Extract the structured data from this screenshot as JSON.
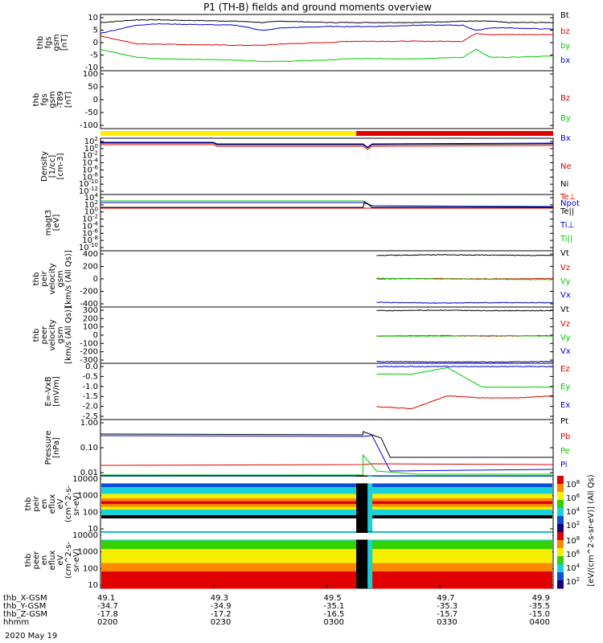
{
  "title": "P1 (TH-B) fields and ground moments overview",
  "date": "2020 May 19",
  "colors": {
    "black": "#000000",
    "red": "#e00000",
    "green": "#00cc00",
    "blue": "#0000dd",
    "yellow": "#ffee00"
  },
  "bottom_axis": {
    "row_labels": [
      "thb_X-GSM",
      "thb_Y-GSM",
      "thb_Z-GSM",
      "hhmm"
    ],
    "columns": [
      [
        "49.1",
        "-34.7",
        "-17.8",
        "0200"
      ],
      [
        "49.3",
        "-34.9",
        "-17.2",
        "0230"
      ],
      [
        "49.5",
        "-35.1",
        "-16.5",
        "0300"
      ],
      [
        "49.7",
        "-35.3",
        "-15.7",
        "0330"
      ],
      [
        "49.9",
        "-35.5",
        "-15.0",
        "0400"
      ]
    ]
  },
  "colorbar": {
    "label": "[eV/(cm^2-s-sr-eV)] (All Qs)",
    "ticks_top": [
      "10^8",
      "10^6",
      "10^4",
      "10^2"
    ],
    "ticks_bottom": [
      "10^8",
      "10^6",
      "10^4",
      "10^2"
    ]
  },
  "chart_data": [
    {
      "type": "line",
      "id": "fgs",
      "ylabel": [
        "thb",
        "fgs",
        "gsm",
        "[nT]"
      ],
      "yticks": [
        "10",
        "5",
        "0",
        "-5",
        "-10"
      ],
      "ylim": [
        -10,
        11
      ],
      "x": [
        0,
        0.08,
        0.12,
        0.3,
        0.36,
        0.4,
        0.5,
        0.55,
        0.6,
        0.7,
        0.8,
        0.83,
        0.86,
        0.9,
        1.0
      ],
      "series": [
        {
          "name": "Bt",
          "color": "black",
          "values": [
            8,
            9,
            9,
            8.5,
            8,
            8.5,
            8,
            8,
            8,
            8,
            8.5,
            8.5,
            8.5,
            8,
            8
          ]
        },
        {
          "name": "bz",
          "color": "red",
          "values": [
            3,
            0,
            0,
            -0.5,
            -0.5,
            0,
            0.5,
            1,
            1,
            1,
            1,
            4,
            3.5,
            3.5,
            3.5
          ]
        },
        {
          "name": "by",
          "color": "green",
          "values": [
            -2,
            -5,
            -5.5,
            -6,
            -6.5,
            -6.5,
            -6,
            -5.5,
            -5.5,
            -5.5,
            -5,
            -2,
            -5,
            -5,
            -4.5
          ]
        },
        {
          "name": "bx",
          "color": "blue",
          "values": [
            4,
            7,
            7.5,
            7,
            5,
            6,
            6.5,
            6.5,
            6.5,
            7,
            7,
            5,
            6,
            6,
            5.5
          ]
        }
      ]
    },
    {
      "type": "line",
      "id": "fgs-minus",
      "ylabel": [
        "thb",
        "fgs",
        "gsm",
        "-T89",
        "[nT]"
      ],
      "yticks": [
        "100",
        "50",
        "0",
        "-50",
        "-100"
      ],
      "ylim": [
        -125,
        100
      ],
      "series": [
        {
          "name": "Bz",
          "color": "red",
          "values": []
        },
        {
          "name": "By",
          "color": "green",
          "values": []
        },
        {
          "name": "Bx",
          "color": "blue",
          "values": []
        }
      ]
    },
    {
      "type": "bar",
      "id": "mode-bar",
      "segments": [
        {
          "color": "yellow",
          "start": 0,
          "end": 0.565
        },
        {
          "color": "red",
          "start": 0.565,
          "end": 1
        }
      ]
    },
    {
      "type": "line",
      "id": "density",
      "scale": "log",
      "ylabel": [
        "Density",
        "[1/cc]",
        "[cm-3]"
      ],
      "yticks": [
        "10^2",
        "10^0",
        "10^-2",
        "10^-4",
        "10^-6",
        "10^-8",
        "10^-10",
        "10^-12"
      ],
      "series": [
        {
          "name": "Ne",
          "color": "red",
          "values": []
        },
        {
          "name": "Ni",
          "color": "black",
          "values": []
        },
        {
          "name": "Npot",
          "color": "blue",
          "values": []
        }
      ]
    },
    {
      "type": "line",
      "id": "temperature",
      "scale": "log",
      "ylabel": [
        "magt3",
        "[eV]"
      ],
      "yticks": [
        "10^4",
        "10^2",
        "10^0",
        "10^-2",
        "10^-4",
        "10^-6",
        "10^-8",
        "10^-10"
      ],
      "series": [
        {
          "name": "Te⊥",
          "color": "red",
          "values": []
        },
        {
          "name": "Te||",
          "color": "black",
          "values": []
        },
        {
          "name": "Ti⊥",
          "color": "blue",
          "values": []
        },
        {
          "name": "Ti||",
          "color": "green",
          "values": []
        }
      ]
    },
    {
      "type": "line",
      "id": "peir-velocity",
      "ylabel": [
        "thb",
        "peir",
        "velocity",
        "gsm",
        "[km/s (All Qs)]"
      ],
      "yticks": [
        "400",
        "200",
        "0",
        "-200",
        "-400"
      ],
      "ylim": [
        -420,
        420
      ],
      "x_start": 0.61,
      "series": [
        {
          "name": "Vt",
          "color": "black",
          "values": [
            350,
            360,
            355,
            350
          ]
        },
        {
          "name": "Vz",
          "color": "red",
          "values": [
            0,
            5,
            0,
            5
          ]
        },
        {
          "name": "Vy",
          "color": "green",
          "values": [
            10,
            0,
            -5,
            -10
          ]
        },
        {
          "name": "Vx",
          "color": "blue",
          "values": [
            -350,
            -360,
            -355,
            -355
          ]
        }
      ]
    },
    {
      "type": "line",
      "id": "peer-velocity",
      "ylabel": [
        "thb",
        "peer",
        "velocity",
        "gsm",
        "[km/s (All Qs)]"
      ],
      "yticks": [
        "300",
        "200",
        "100",
        "0",
        "-100",
        "-200",
        "-300"
      ],
      "ylim": [
        -300,
        320
      ],
      "x_start": 0.61,
      "series": [
        {
          "name": "Vt",
          "color": "black",
          "values": [
            280,
            285,
            280,
            280
          ]
        },
        {
          "name": "Vz",
          "color": "red",
          "values": [
            0,
            5,
            0,
            5
          ]
        },
        {
          "name": "Vy",
          "color": "green",
          "values": [
            0,
            0,
            5,
            0
          ]
        },
        {
          "name": "Vx",
          "color": "blue",
          "values": [
            -280,
            -285,
            -285,
            -280
          ]
        }
      ]
    },
    {
      "type": "line",
      "id": "efield",
      "ylabel": [
        "E=-VxB",
        "[mV/m]"
      ],
      "yticks": [
        "0.0",
        "-0.5",
        "-1.0",
        "-1.5",
        "-2.0",
        "-2.5"
      ],
      "ylim": [
        -2.5,
        0.1
      ],
      "x_start": 0.61,
      "series": [
        {
          "name": "Ez",
          "color": "red",
          "values": [
            -1.9,
            -2.0,
            -1.4,
            -1.5,
            -1.5,
            -1.4
          ]
        },
        {
          "name": "Ey",
          "color": "green",
          "values": [
            -0.4,
            -0.4,
            -0.1,
            -1.0,
            -1.0,
            -1.0
          ]
        },
        {
          "name": "Ex",
          "color": "blue",
          "values": [
            -0.05,
            -0.05,
            -0.05,
            -0.05,
            -0.05,
            -0.05
          ]
        }
      ]
    },
    {
      "type": "line",
      "id": "pressure",
      "scale": "log",
      "ylabel": [
        "Pressure",
        "[nPa]"
      ],
      "yticks": [
        "1.00",
        "0.10",
        "0.01"
      ],
      "series": [
        {
          "name": "Pt",
          "color": "black",
          "values": []
        },
        {
          "name": "Pb",
          "color": "red",
          "values": []
        },
        {
          "name": "Pe",
          "color": "green",
          "values": []
        },
        {
          "name": "Pi",
          "color": "blue",
          "values": []
        }
      ]
    },
    {
      "type": "heatmap",
      "id": "peir-spectrogram",
      "ylabel": [
        "thb",
        "peir",
        "en",
        "eflux",
        "eV",
        "(cm^2-s-",
        "sr-eV)"
      ],
      "yticks": [
        "10000",
        "1000",
        "100",
        "10"
      ]
    },
    {
      "type": "heatmap",
      "id": "peer-spectrogram",
      "ylabel": [
        "thb",
        "peer",
        "en",
        "eflux",
        "eV",
        "(cm^2-s-",
        "sr-eV)"
      ],
      "yticks": [
        "10000",
        "1000",
        "100",
        "10"
      ]
    }
  ]
}
